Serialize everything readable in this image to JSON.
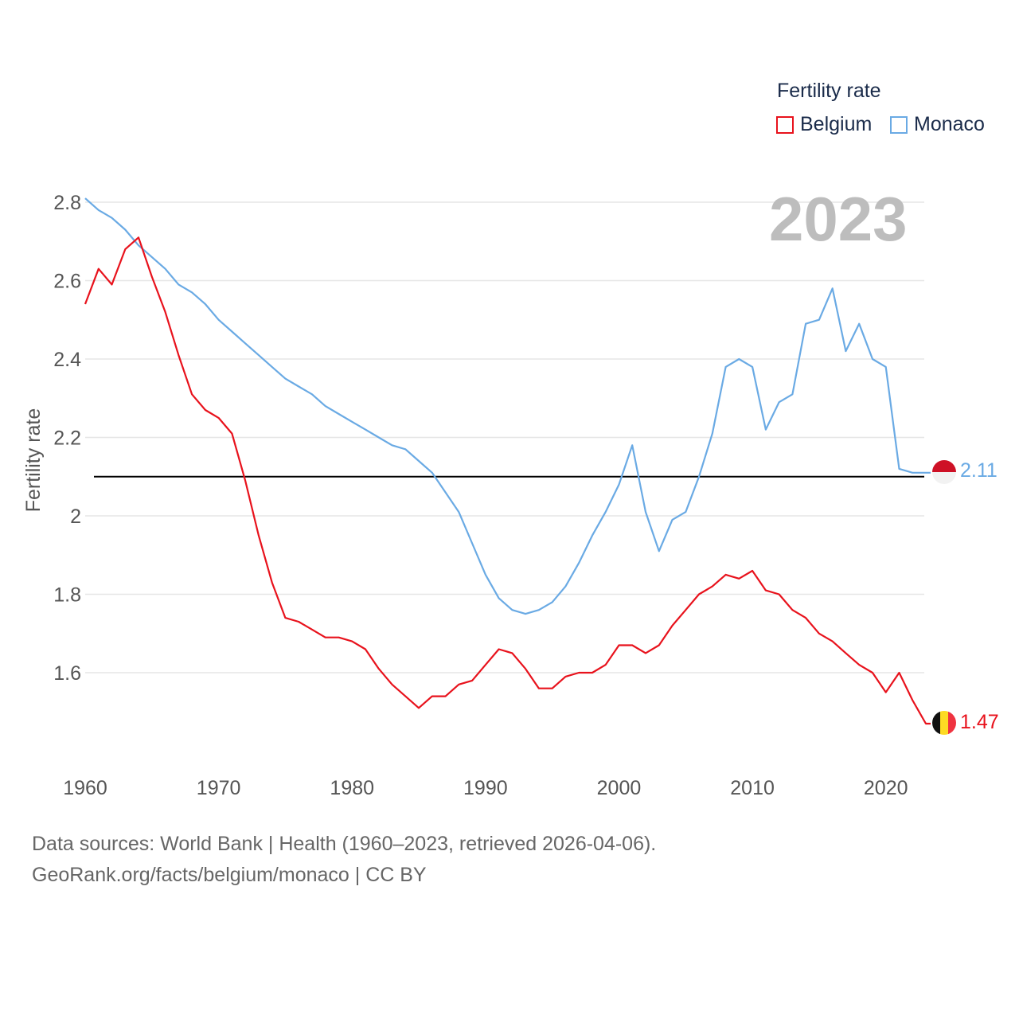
{
  "legend": {
    "title": "Fertility rate",
    "items": [
      {
        "label": "Belgium",
        "color": "#e8121c"
      },
      {
        "label": "Monaco",
        "color": "#6aaae4"
      }
    ]
  },
  "year_watermark": "2023",
  "end_labels": {
    "monaco": "2.11",
    "belgium": "1.47"
  },
  "footer": {
    "line1": "Data sources: World Bank | Health (1960–2023, retrieved 2026-04-06).",
    "line2": "GeoRank.org/facts/belgium/monaco | CC BY"
  },
  "chart_data": {
    "type": "line",
    "title": "Fertility rate",
    "xlabel": "",
    "ylabel": "Fertility rate",
    "xlim": [
      1960,
      2023
    ],
    "ylim": [
      1.4,
      2.8
    ],
    "xticks": [
      1960,
      1970,
      1980,
      1990,
      2000,
      2010,
      2020
    ],
    "yticks": [
      1.6,
      1.8,
      2.0,
      2.2,
      2.4,
      2.6,
      2.8
    ],
    "ytick_labels": [
      "1.6",
      "1.8",
      "2",
      "2.2",
      "2.4",
      "2.6",
      "2.8"
    ],
    "reference_line": 2.1,
    "x": [
      1960,
      1961,
      1962,
      1963,
      1964,
      1965,
      1966,
      1967,
      1968,
      1969,
      1970,
      1971,
      1972,
      1973,
      1974,
      1975,
      1976,
      1977,
      1978,
      1979,
      1980,
      1981,
      1982,
      1983,
      1984,
      1985,
      1986,
      1987,
      1988,
      1989,
      1990,
      1991,
      1992,
      1993,
      1994,
      1995,
      1996,
      1997,
      1998,
      1999,
      2000,
      2001,
      2002,
      2003,
      2004,
      2005,
      2006,
      2007,
      2008,
      2009,
      2010,
      2011,
      2012,
      2013,
      2014,
      2015,
      2016,
      2017,
      2018,
      2019,
      2020,
      2021,
      2022,
      2023
    ],
    "series": [
      {
        "name": "Belgium",
        "color": "#e8121c",
        "values": [
          2.54,
          2.63,
          2.59,
          2.68,
          2.71,
          2.61,
          2.52,
          2.41,
          2.31,
          2.27,
          2.25,
          2.21,
          2.09,
          1.95,
          1.83,
          1.74,
          1.73,
          1.71,
          1.69,
          1.69,
          1.68,
          1.66,
          1.61,
          1.57,
          1.54,
          1.51,
          1.54,
          1.54,
          1.57,
          1.58,
          1.62,
          1.66,
          1.65,
          1.61,
          1.56,
          1.56,
          1.59,
          1.6,
          1.6,
          1.62,
          1.67,
          1.67,
          1.65,
          1.67,
          1.72,
          1.76,
          1.8,
          1.82,
          1.85,
          1.84,
          1.86,
          1.81,
          1.8,
          1.76,
          1.74,
          1.7,
          1.68,
          1.65,
          1.62,
          1.6,
          1.55,
          1.6,
          1.53,
          1.47
        ]
      },
      {
        "name": "Monaco",
        "color": "#6aaae4",
        "values": [
          2.81,
          2.78,
          2.76,
          2.73,
          2.69,
          2.66,
          2.63,
          2.59,
          2.57,
          2.54,
          2.5,
          2.47,
          2.44,
          2.41,
          2.38,
          2.35,
          2.33,
          2.31,
          2.28,
          2.26,
          2.24,
          2.22,
          2.2,
          2.18,
          2.17,
          2.14,
          2.11,
          2.06,
          2.01,
          1.93,
          1.85,
          1.79,
          1.76,
          1.75,
          1.76,
          1.78,
          1.82,
          1.88,
          1.95,
          2.01,
          2.08,
          2.18,
          2.01,
          1.91,
          1.99,
          2.01,
          2.1,
          2.21,
          2.38,
          2.4,
          2.38,
          2.22,
          2.29,
          2.31,
          2.49,
          2.5,
          2.58,
          2.42,
          2.49,
          2.4,
          2.38,
          2.12,
          2.11,
          2.11
        ]
      }
    ]
  }
}
